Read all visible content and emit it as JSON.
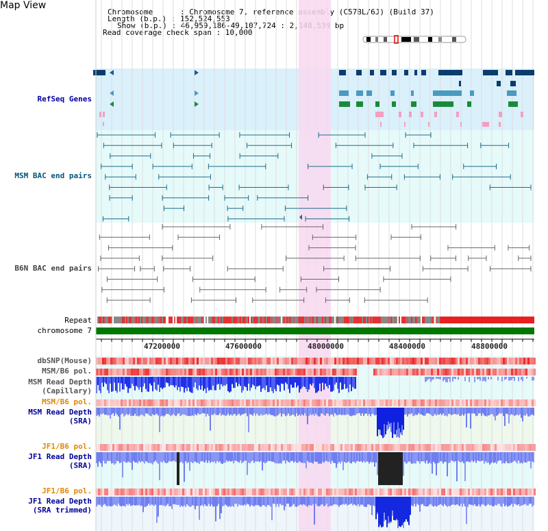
{
  "header": {
    "title": "Map View",
    "chromosome_line": "Chromosome      : Chromosome 7, reference assembly (C57BL/6J) (Build 37)",
    "length_line": "Length (b.p.) : 152,524,553",
    "show_line": "Show (b.p.) : 46,959,186-49,107,724 : 2,148,539 bp",
    "coverage_line": "Read coverage check span : 10,000"
  },
  "tracks": {
    "refseq": "RefSeq Genes",
    "msm_bac": "MSM BAC end pairs",
    "b6n_bac": "B6N BAC end pairs",
    "repeat": "Repeat",
    "chromosome": "chromosome 7",
    "dbsnp": "dbSNP(Mouse)",
    "msm_b6_pol_1": "MSM/B6 pol.",
    "msm_depth_cap_1": "MSM Read Depth",
    "msm_depth_cap_2": "(Capillary)",
    "msm_b6_pol_2": "MSM/B6 pol.",
    "msm_depth_sra_1": "MSM Read Depth",
    "msm_depth_sra_2": "(SRA)",
    "jf1_b6_pol_1": "JF1/B6 pol.",
    "jf1_depth_sra_1": "JF1 Read Depth",
    "jf1_depth_sra_2": "(SRA)",
    "jf1_b6_pol_2": "JF1/B6 pol.",
    "jf1_depth_trim_1": "JF1 Read Depth",
    "jf1_depth_trim_2": "(SRA trimmed)"
  },
  "axis": {
    "ticks": [
      "47200000",
      "47600000",
      "48000000",
      "48400000",
      "48800000"
    ]
  },
  "colors": {
    "refseq_label": "#0000aa",
    "msm_bac_label": "#005577",
    "b6n_bac_label": "#444444",
    "pol_label": "#e08800",
    "depth_label": "#000099",
    "highlight": "#f8d8f0",
    "chromosome_bar": "#007700",
    "read_depth_bar": "#2244ee"
  }
}
